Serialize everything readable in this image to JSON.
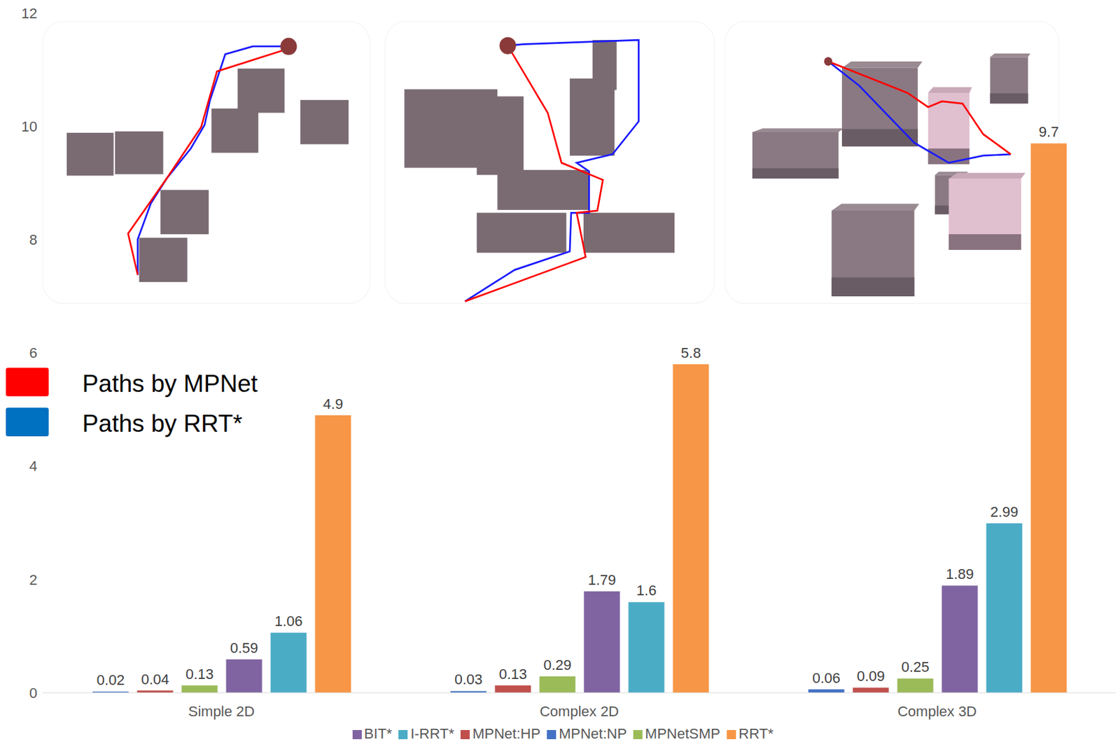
{
  "chart_data": {
    "type": "bar",
    "categories": [
      "Simple 2D",
      "Complex 2D",
      "Complex 3D"
    ],
    "series": [
      {
        "name": "MPNet:NP",
        "color": "#4472c4",
        "values": [
          0.02,
          0.03,
          0.06
        ]
      },
      {
        "name": "MPNet:HP",
        "color": "#c0504d",
        "values": [
          0.04,
          0.13,
          0.09
        ]
      },
      {
        "name": "MPNetSMP",
        "color": "#9bbb59",
        "values": [
          0.13,
          0.29,
          0.25
        ]
      },
      {
        "name": "BIT*",
        "color": "#8064a2",
        "values": [
          0.59,
          1.79,
          1.89
        ]
      },
      {
        "name": "I-RRT*",
        "color": "#4bacc6",
        "values": [
          1.06,
          1.6,
          2.99
        ]
      },
      {
        "name": "RRT*",
        "color": "#f79646",
        "values": [
          4.9,
          5.8,
          9.7
        ]
      }
    ],
    "ylim": [
      0,
      12
    ],
    "yticks": [
      0,
      2,
      4,
      6,
      8,
      10,
      12
    ],
    "grid": false,
    "data_labels": true,
    "legend": "bottom",
    "annotations": [
      {
        "text": "Paths by MPNet",
        "color": "#ff0000"
      },
      {
        "text": "Paths by RRT*",
        "color": "#0070c0"
      }
    ]
  }
}
